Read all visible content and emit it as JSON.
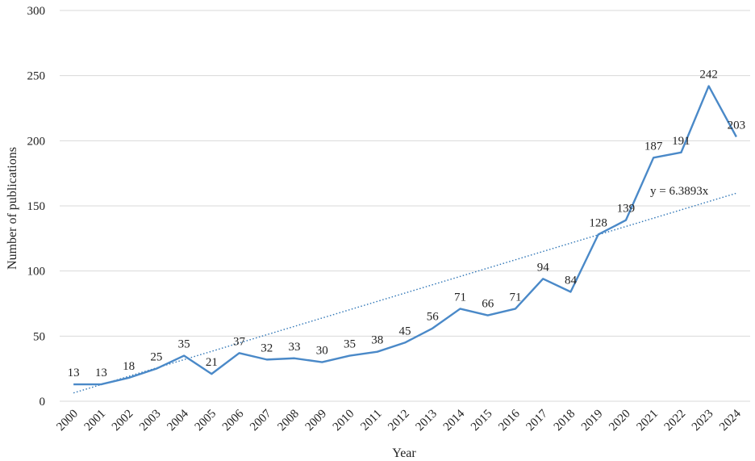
{
  "chart_data": {
    "type": "line",
    "xlabel": "Year",
    "ylabel": "Number of publications",
    "ylim": [
      0,
      300
    ],
    "yticks": [
      0,
      50,
      100,
      150,
      200,
      250,
      300
    ],
    "grid": "horizontal",
    "categories": [
      "2000",
      "2001",
      "2002",
      "2003",
      "2004",
      "2005",
      "2006",
      "2007",
      "2008",
      "2009",
      "2010",
      "2011",
      "2012",
      "2013",
      "2014",
      "2015",
      "2016",
      "2017",
      "2018",
      "2019",
      "2020",
      "2021",
      "2022",
      "2023",
      "2024"
    ],
    "series": [
      {
        "values": [
          13,
          13,
          18,
          25,
          35,
          21,
          37,
          32,
          33,
          30,
          35,
          38,
          45,
          56,
          71,
          66,
          71,
          94,
          84,
          128,
          139,
          187,
          191,
          242,
          203
        ],
        "color": "#4a89c8"
      }
    ],
    "trendline": {
      "type": "linear",
      "slope": 6.3893,
      "equation": "y = 6.3893x",
      "color": "#2e75b6",
      "style": "dotted"
    }
  }
}
